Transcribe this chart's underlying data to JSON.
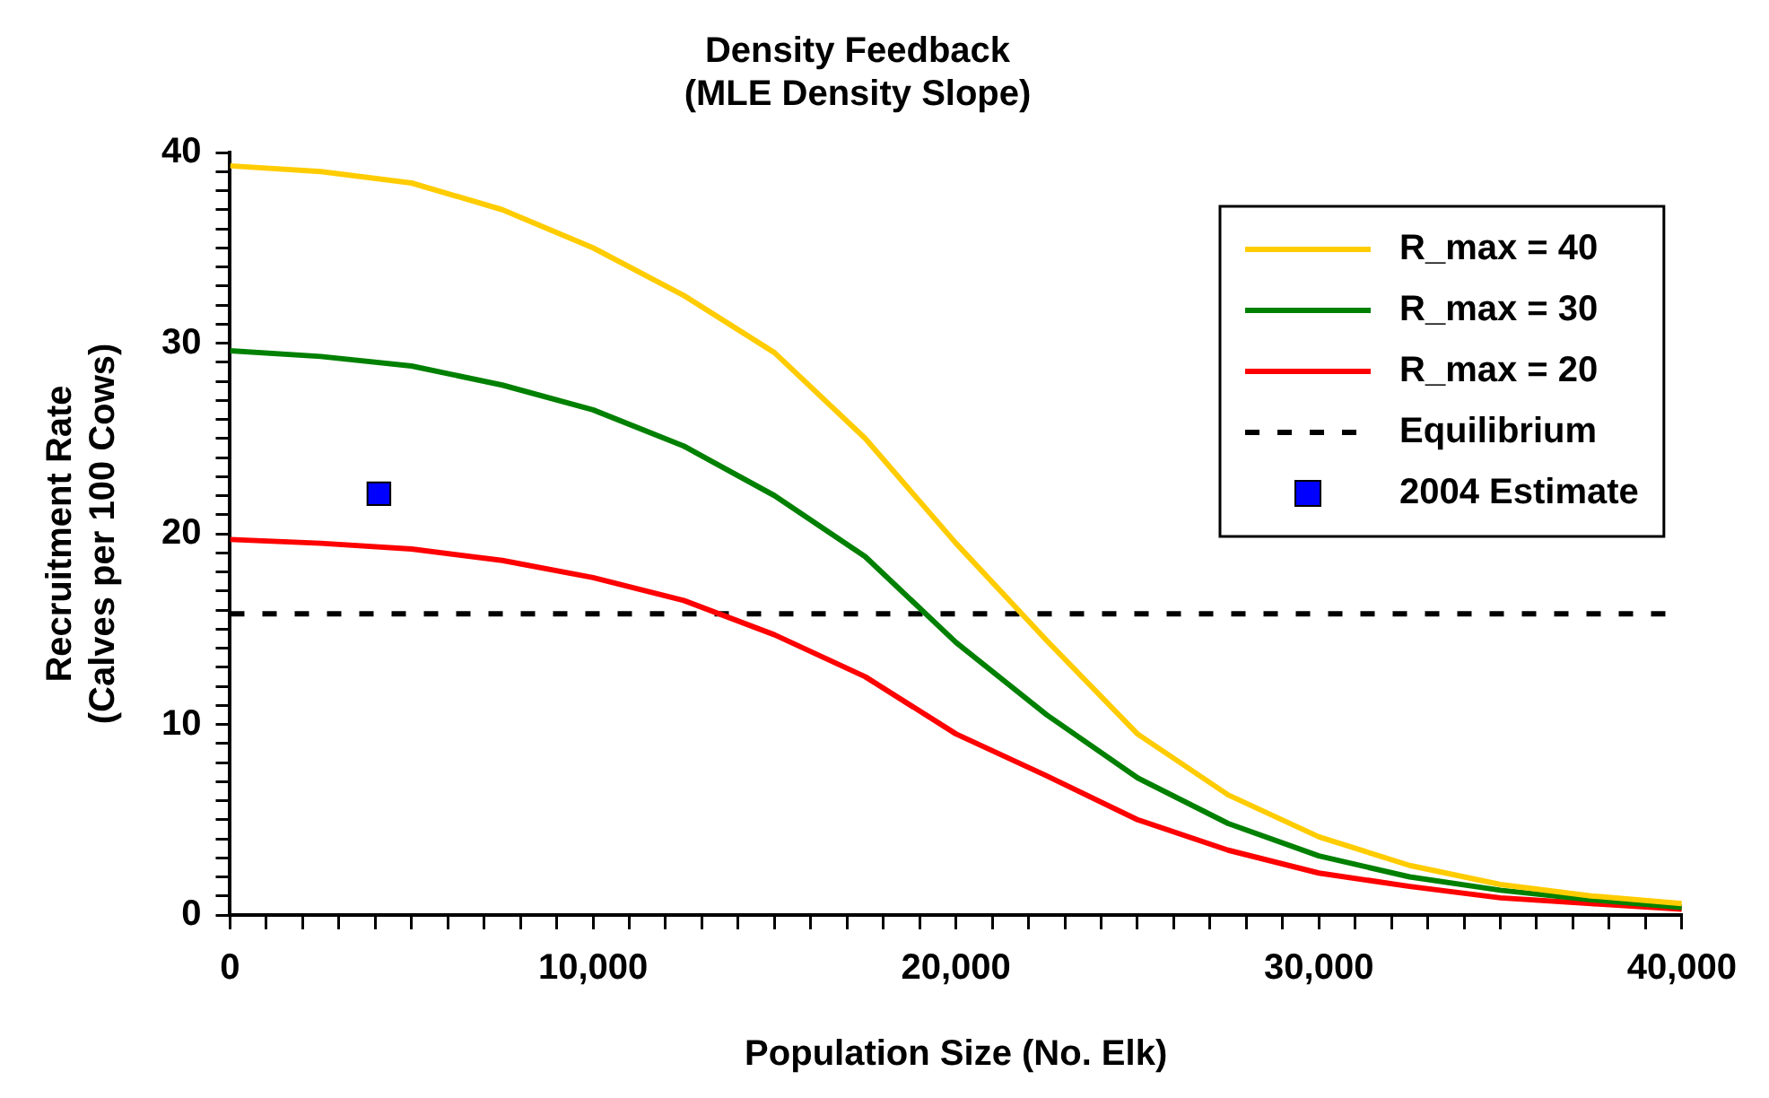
{
  "chart_data": {
    "type": "line",
    "title": "Density Feedback",
    "subtitle": "(MLE Density Slope)",
    "xlabel": "Population Size (No. Elk)",
    "ylabel": "Recruitment Rate\n(Calves per 100 Cows)",
    "x": [
      0,
      2500,
      5000,
      7500,
      10000,
      12500,
      15000,
      17500,
      20000,
      22500,
      25000,
      27500,
      30000,
      32500,
      35000,
      37500,
      40000
    ],
    "series": [
      {
        "name": "R_max = 40",
        "color": "#ffcc00",
        "values": [
          39.3,
          39.0,
          38.4,
          37.0,
          35.0,
          32.5,
          29.5,
          25.0,
          19.5,
          14.4,
          9.5,
          6.3,
          4.1,
          2.6,
          1.6,
          1.0,
          0.6
        ]
      },
      {
        "name": "R_max = 30",
        "color": "#008000",
        "values": [
          29.6,
          29.3,
          28.8,
          27.8,
          26.5,
          24.6,
          22.0,
          18.8,
          14.3,
          10.5,
          7.2,
          4.8,
          3.1,
          2.0,
          1.3,
          0.8,
          0.4
        ]
      },
      {
        "name": "R_max = 20",
        "color": "#ff0000",
        "values": [
          19.7,
          19.5,
          19.2,
          18.6,
          17.7,
          16.5,
          14.7,
          12.5,
          9.5,
          7.3,
          5.0,
          3.4,
          2.2,
          1.5,
          0.9,
          0.6,
          0.3
        ]
      },
      {
        "name": "Equilibrium",
        "color": "#000000",
        "line_style": "dashed",
        "x": [
          0,
          40000
        ],
        "values": [
          15.8,
          15.8
        ]
      },
      {
        "name": "2004 Estimate",
        "type": "scatter",
        "marker": "square",
        "color": "#0000ff",
        "x": [
          4100
        ],
        "values": [
          22.1
        ]
      }
    ],
    "marker": "none",
    "line_style": "solid",
    "legend": "top right",
    "grid": false,
    "xlim": [
      0,
      40000
    ],
    "xticks": [
      {
        "value": 0,
        "label": "0"
      },
      {
        "value": 1000,
        "label": null
      },
      {
        "value": 2000,
        "label": null
      },
      {
        "value": 3000,
        "label": null
      },
      {
        "value": 4000,
        "label": null
      },
      {
        "value": 5000,
        "label": null
      },
      {
        "value": 6000,
        "label": null
      },
      {
        "value": 7000,
        "label": null
      },
      {
        "value": 8000,
        "label": null
      },
      {
        "value": 9000,
        "label": null
      },
      {
        "value": 10000,
        "label": "10,000"
      },
      {
        "value": 11000,
        "label": null
      },
      {
        "value": 12000,
        "label": null
      },
      {
        "value": 13000,
        "label": null
      },
      {
        "value": 14000,
        "label": null
      },
      {
        "value": 15000,
        "label": null
      },
      {
        "value": 16000,
        "label": null
      },
      {
        "value": 17000,
        "label": null
      },
      {
        "value": 18000,
        "label": null
      },
      {
        "value": 19000,
        "label": null
      },
      {
        "value": 20000,
        "label": "20,000"
      },
      {
        "value": 21000,
        "label": null
      },
      {
        "value": 22000,
        "label": null
      },
      {
        "value": 23000,
        "label": null
      },
      {
        "value": 24000,
        "label": null
      },
      {
        "value": 25000,
        "label": null
      },
      {
        "value": 26000,
        "label": null
      },
      {
        "value": 27000,
        "label": null
      },
      {
        "value": 28000,
        "label": null
      },
      {
        "value": 29000,
        "label": null
      },
      {
        "value": 30000,
        "label": "30,000"
      },
      {
        "value": 31000,
        "label": null
      },
      {
        "value": 32000,
        "label": null
      },
      {
        "value": 33000,
        "label": null
      },
      {
        "value": 34000,
        "label": null
      },
      {
        "value": 35000,
        "label": null
      },
      {
        "value": 36000,
        "label": null
      },
      {
        "value": 37000,
        "label": null
      },
      {
        "value": 38000,
        "label": null
      },
      {
        "value": 39000,
        "label": null
      },
      {
        "value": 40000,
        "label": "40,000"
      }
    ],
    "ylim": [
      0,
      40
    ],
    "yticks": [
      0,
      {
        "value": 1,
        "label": null
      },
      {
        "value": 2,
        "label": null
      },
      {
        "value": 3,
        "label": null
      },
      {
        "value": 4,
        "label": null
      },
      {
        "value": 5,
        "label": null
      },
      {
        "value": 6,
        "label": null
      },
      {
        "value": 7,
        "label": null
      },
      {
        "value": 8,
        "label": null
      },
      {
        "value": 9,
        "label": null
      },
      10,
      {
        "value": 11,
        "label": null
      },
      {
        "value": 12,
        "label": null
      },
      {
        "value": 13,
        "label": null
      },
      {
        "value": 14,
        "label": null
      },
      {
        "value": 15,
        "label": null
      },
      {
        "value": 16,
        "label": null
      },
      {
        "value": 17,
        "label": null
      },
      {
        "value": 18,
        "label": null
      },
      {
        "value": 19,
        "label": null
      },
      20,
      {
        "value": 21,
        "label": null
      },
      {
        "value": 22,
        "label": null
      },
      {
        "value": 23,
        "label": null
      },
      {
        "value": 24,
        "label": null
      },
      {
        "value": 25,
        "label": null
      },
      {
        "value": 26,
        "label": null
      },
      {
        "value": 27,
        "label": null
      },
      {
        "value": 28,
        "label": null
      },
      {
        "value": 29,
        "label": null
      },
      30,
      {
        "value": 31,
        "label": null
      },
      {
        "value": 32,
        "label": null
      },
      {
        "value": 33,
        "label": null
      },
      {
        "value": 34,
        "label": null
      },
      {
        "value": 35,
        "label": null
      },
      {
        "value": 36,
        "label": null
      },
      {
        "value": 37,
        "label": null
      },
      {
        "value": 38,
        "label": null
      },
      {
        "value": 39,
        "label": null
      },
      40
    ]
  }
}
